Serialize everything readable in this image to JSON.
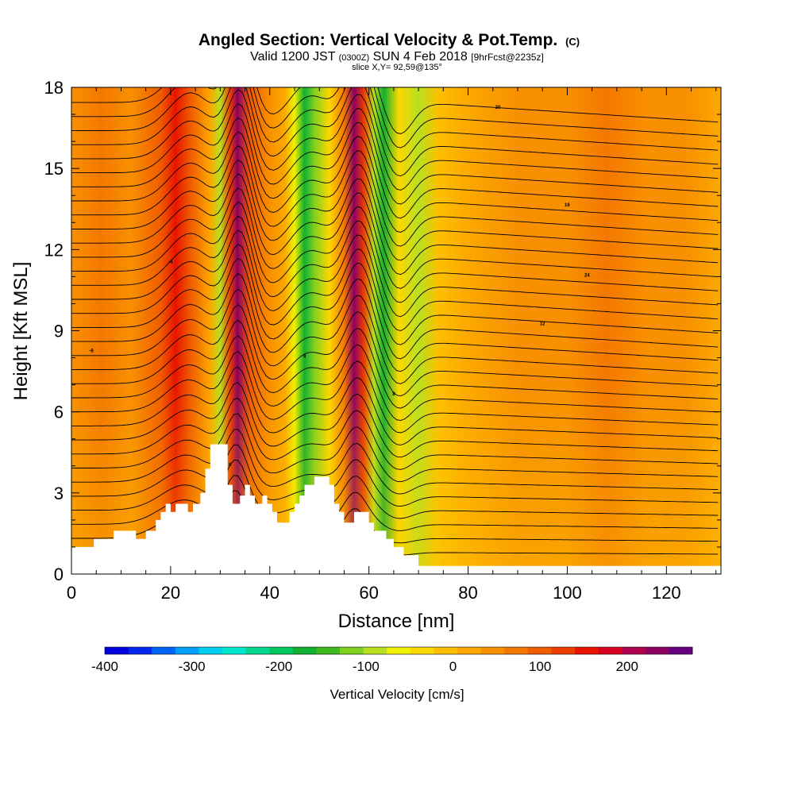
{
  "header": {
    "title_main": "Angled Section: Vertical Velocity & Pot.Temp.",
    "title_unit": "(C)",
    "valid_prefix": "Valid 1200 JST",
    "valid_utc": "(0300Z)",
    "valid_date": "SUN 4 Feb 2018",
    "valid_fcst": "[9hrFcst@2235z]",
    "slice_info": "slice X,Y= 92,59@135°"
  },
  "chart_data": {
    "type": "heatmap",
    "title": "Angled Section: Vertical Velocity & Pot.Temp. (C)",
    "xlabel": "Distance [nm]",
    "ylabel": "Height [Kft MSL]",
    "xlim": [
      0,
      131
    ],
    "ylim": [
      0,
      18
    ],
    "x_ticks": [
      0,
      20,
      40,
      60,
      80,
      100,
      120
    ],
    "y_ticks": [
      0,
      3,
      6,
      9,
      12,
      15,
      18
    ],
    "grid": false,
    "colorbar": {
      "label": "Vertical Velocity [cm/s]",
      "tick_values": [
        -400,
        -300,
        -200,
        -100,
        0,
        100,
        200
      ],
      "range": [
        -400,
        275
      ],
      "colors": [
        "#0000e0",
        "#0028f0",
        "#0064f8",
        "#00a0f8",
        "#00d0f0",
        "#00e8d0",
        "#00d890",
        "#00c860",
        "#10b030",
        "#40b820",
        "#80d020",
        "#b8e020",
        "#f0f000",
        "#fcd800",
        "#fcc000",
        "#fca800",
        "#f89000",
        "#f47800",
        "#f05c00",
        "#ec3c00",
        "#e81400",
        "#d80020",
        "#b00050",
        "#8c0060",
        "#660080"
      ]
    },
    "velocity_bands": [
      {
        "x": 0,
        "value": 40
      },
      {
        "x": 6,
        "value": 60
      },
      {
        "x": 12,
        "value": 50
      },
      {
        "x": 18,
        "value": 110
      },
      {
        "x": 21,
        "value": 160
      },
      {
        "x": 24,
        "value": 110
      },
      {
        "x": 28,
        "value": 20
      },
      {
        "x": 30,
        "value": -90
      },
      {
        "x": 32,
        "value": 130
      },
      {
        "x": 33.5,
        "value": 230
      },
      {
        "x": 36,
        "value": 90
      },
      {
        "x": 40,
        "value": 40
      },
      {
        "x": 43,
        "value": 10
      },
      {
        "x": 45,
        "value": -60
      },
      {
        "x": 47,
        "value": -180
      },
      {
        "x": 49,
        "value": -110
      },
      {
        "x": 52,
        "value": -30
      },
      {
        "x": 55,
        "value": 80
      },
      {
        "x": 57,
        "value": 230
      },
      {
        "x": 59,
        "value": 120
      },
      {
        "x": 61,
        "value": -90
      },
      {
        "x": 63,
        "value": -170
      },
      {
        "x": 66,
        "value": -40
      },
      {
        "x": 70,
        "value": -100
      },
      {
        "x": 74,
        "value": -20
      },
      {
        "x": 80,
        "value": 20
      },
      {
        "x": 90,
        "value": 40
      },
      {
        "x": 100,
        "value": 40
      },
      {
        "x": 108,
        "value": 70
      },
      {
        "x": 116,
        "value": 40
      },
      {
        "x": 124,
        "value": 40
      },
      {
        "x": 131,
        "value": 30
      }
    ],
    "terrain": [
      [
        0,
        1.0
      ],
      [
        4.5,
        1.0
      ],
      [
        4.5,
        1.3
      ],
      [
        8.5,
        1.3
      ],
      [
        8.5,
        1.6
      ],
      [
        13,
        1.6
      ],
      [
        13,
        1.3
      ],
      [
        15,
        1.3
      ],
      [
        15,
        1.6
      ],
      [
        17,
        1.6
      ],
      [
        17,
        2.0
      ],
      [
        18,
        2.0
      ],
      [
        18,
        2.3
      ],
      [
        19,
        2.3
      ],
      [
        19,
        2.6
      ],
      [
        20,
        2.6
      ],
      [
        20,
        2.3
      ],
      [
        21,
        2.3
      ],
      [
        21,
        2.6
      ],
      [
        23.5,
        2.6
      ],
      [
        23.5,
        2.3
      ],
      [
        24.5,
        2.3
      ],
      [
        24.5,
        2.6
      ],
      [
        26,
        2.6
      ],
      [
        26,
        3.0
      ],
      [
        27,
        3.0
      ],
      [
        27,
        3.9
      ],
      [
        28,
        3.9
      ],
      [
        28,
        4.8
      ],
      [
        31.5,
        4.8
      ],
      [
        31.5,
        3.3
      ],
      [
        32.5,
        3.3
      ],
      [
        32.5,
        2.6
      ],
      [
        34,
        2.6
      ],
      [
        34,
        2.9
      ],
      [
        35,
        2.9
      ],
      [
        35,
        3.3
      ],
      [
        36,
        3.3
      ],
      [
        36,
        2.9
      ],
      [
        37,
        2.9
      ],
      [
        37,
        2.6
      ],
      [
        38.5,
        2.6
      ],
      [
        38.5,
        2.9
      ],
      [
        39.5,
        2.9
      ],
      [
        39.5,
        2.6
      ],
      [
        40.5,
        2.6
      ],
      [
        40.5,
        2.3
      ],
      [
        41.5,
        2.3
      ],
      [
        41.5,
        1.9
      ],
      [
        44,
        1.9
      ],
      [
        44,
        2.3
      ],
      [
        45,
        2.3
      ],
      [
        45,
        2.6
      ],
      [
        46,
        2.6
      ],
      [
        46,
        2.9
      ],
      [
        47,
        2.9
      ],
      [
        47,
        3.3
      ],
      [
        49,
        3.3
      ],
      [
        49,
        3.6
      ],
      [
        52,
        3.6
      ],
      [
        52,
        3.3
      ],
      [
        53,
        3.3
      ],
      [
        53,
        2.6
      ],
      [
        54,
        2.6
      ],
      [
        54,
        2.3
      ],
      [
        55,
        2.3
      ],
      [
        55,
        1.9
      ],
      [
        57,
        1.9
      ],
      [
        57,
        2.3
      ],
      [
        60,
        2.3
      ],
      [
        60,
        1.9
      ],
      [
        61,
        1.9
      ],
      [
        61,
        1.6
      ],
      [
        63.5,
        1.6
      ],
      [
        63.5,
        1.3
      ],
      [
        65,
        1.3
      ],
      [
        65,
        1.0
      ],
      [
        67,
        1.0
      ],
      [
        67,
        0.7
      ],
      [
        70,
        0.7
      ],
      [
        70,
        0.3
      ],
      [
        131,
        0.3
      ]
    ],
    "isentropes": {
      "count": 33,
      "base_height": 0.8,
      "spacing": 0.52
    },
    "contour_labels": [
      "-8",
      "-4",
      "0",
      "4",
      "8",
      "12",
      "16",
      "20",
      "24"
    ]
  }
}
